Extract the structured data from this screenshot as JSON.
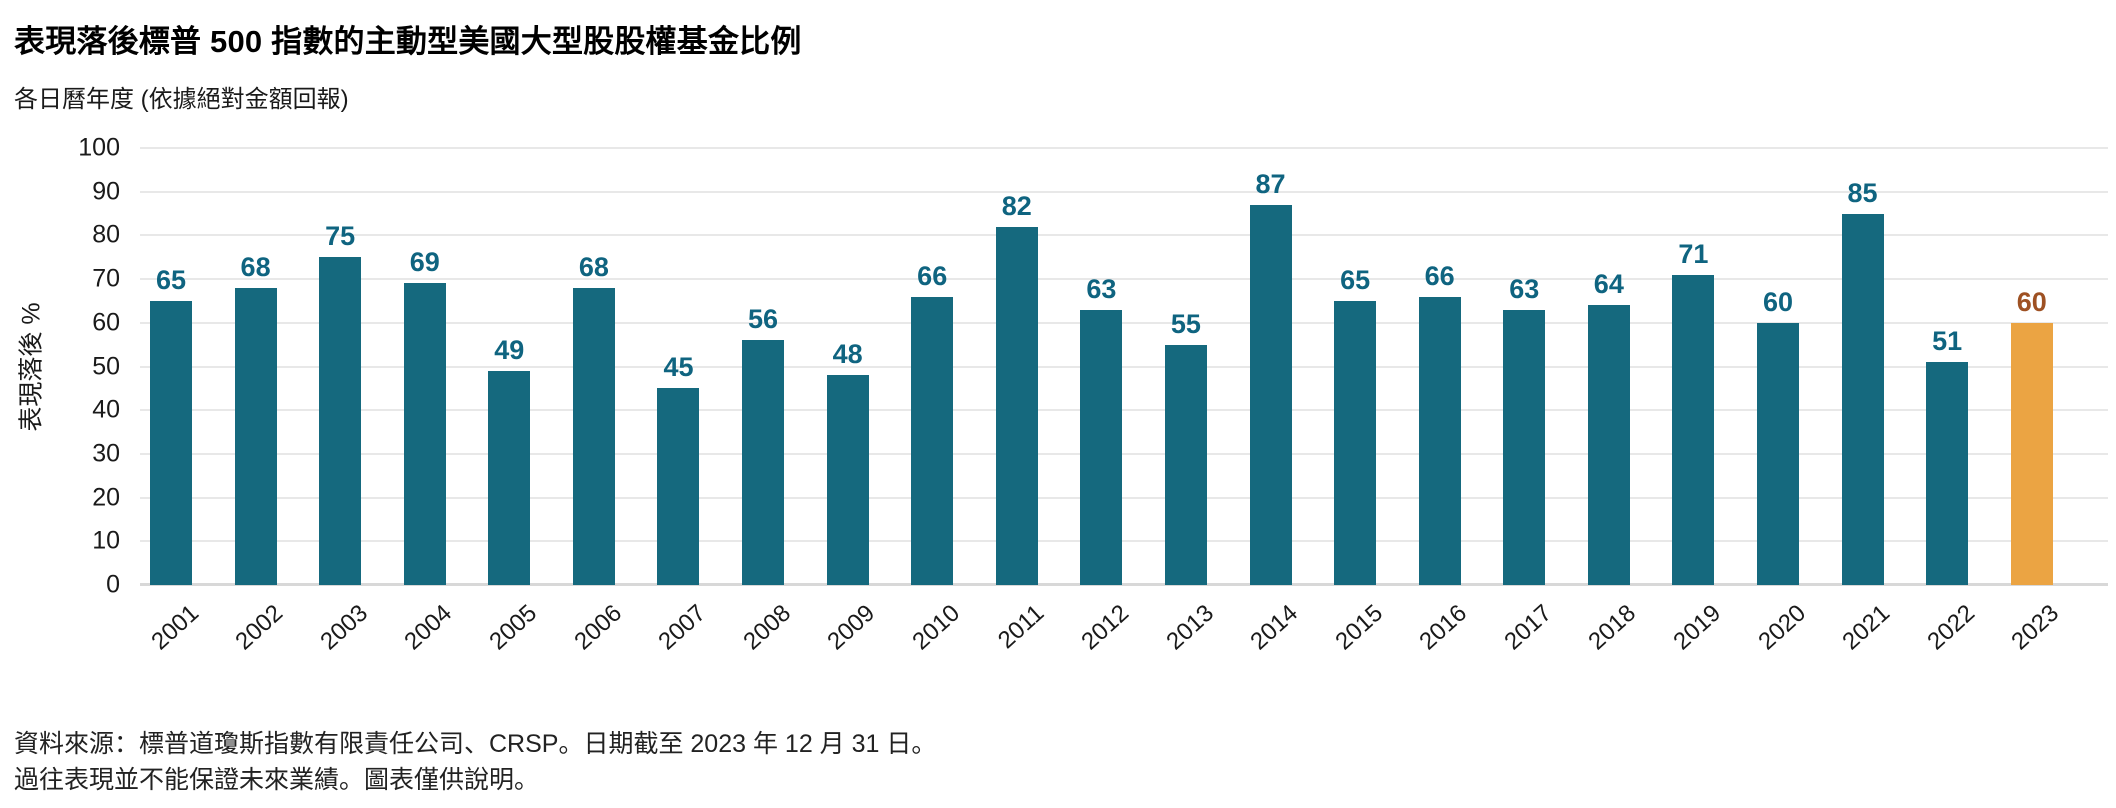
{
  "title": "表現落後標普 500 指數的主動型美國大型股股權基金比例",
  "subtitle": "各日曆年度 (依據絕對金額回報)",
  "y_axis_label": "表現落後 %",
  "footer": {
    "line1": "資料來源：標普道瓊斯指數有限責任公司、CRSP。日期截至 2023 年 12 月 31 日。",
    "line2": "過往表現並不能保證未來業績。圖表僅供說明。"
  },
  "colors": {
    "bar": "#15697e",
    "bar_label": "#0f6480",
    "highlight_bar": "#ebA443",
    "highlight_label": "#9e5123",
    "grid": "#e8e8e8",
    "baseline": "#d8d8d8"
  },
  "chart_data": {
    "type": "bar",
    "title": "表現落後標普 500 指數的主動型美國大型股股權基金比例",
    "subtitle": "各日曆年度 (依據絕對金額回報)",
    "xlabel": "",
    "ylabel": "表現落後 %",
    "ylim": [
      0,
      100
    ],
    "ytick_step": 10,
    "grid": true,
    "legend": false,
    "categories": [
      "2001",
      "2002",
      "2003",
      "2004",
      "2005",
      "2006",
      "2007",
      "2008",
      "2009",
      "2010",
      "2011",
      "2012",
      "2013",
      "2014",
      "2015",
      "2016",
      "2017",
      "2018",
      "2019",
      "2020",
      "2021",
      "2022",
      "2023"
    ],
    "values": [
      65,
      68,
      75,
      69,
      49,
      68,
      45,
      56,
      48,
      66,
      82,
      63,
      55,
      87,
      65,
      66,
      63,
      64,
      71,
      60,
      85,
      51,
      60
    ],
    "highlight_index": 22
  }
}
